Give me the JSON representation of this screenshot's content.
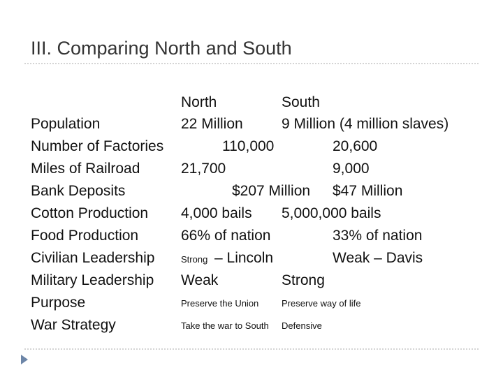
{
  "title": "III. Comparing North and South",
  "table": {
    "header": [
      "North",
      "South"
    ],
    "rows": [
      [
        "Population",
        "22 Million",
        "9 Million (4 million slaves)"
      ],
      [
        "Number of Factories",
        "110,000",
        "20,600"
      ],
      [
        "Miles of Railroad",
        "21,700",
        "9,000"
      ],
      [
        "Bank Deposits",
        "$207 Million",
        "$47 Million"
      ],
      [
        "Cotton Production",
        "4,000 bails",
        "5,000,000 bails"
      ],
      [
        "Food Production",
        "66% of nation",
        "33% of nation"
      ],
      [
        "Civilian Leadership",
        [
          "Strong",
          "– Lincoln"
        ],
        "Weak – Davis"
      ],
      [
        "Military Leadership",
        "Weak",
        "Strong"
      ],
      [
        "Purpose",
        "Preserve the Union",
        "Preserve way of life"
      ],
      [
        "War Strategy",
        "Take the war to South",
        "Defensive"
      ]
    ]
  }
}
